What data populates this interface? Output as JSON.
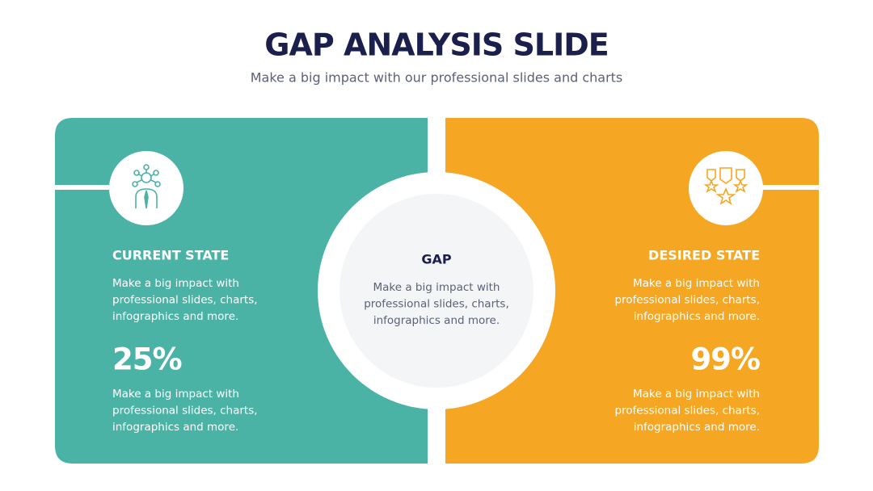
{
  "header": {
    "title": "GAP ANALYSIS SLIDE",
    "subtitle": "Make a big impact with our professional slides and charts"
  },
  "current": {
    "heading": "CURRENT STATE",
    "text": [
      "Make a big impact with",
      "professional slides, charts,",
      "infographics and more."
    ],
    "stat": "25%",
    "stat_text": [
      "Make a big impact with",
      "professional slides, charts,",
      "infographics and more."
    ]
  },
  "gap": {
    "heading": "GAP",
    "text": [
      "Make a big impact with",
      "professional slides, charts,",
      "infographics and more."
    ]
  },
  "desired": {
    "heading": "DESIRED STATE",
    "text": [
      "Make a big impact with",
      "professional slides, charts,",
      "infographics and more."
    ],
    "stat": "99%",
    "stat_text": [
      "Make a big impact with",
      "professional slides, charts,",
      "infographics and more."
    ]
  }
}
